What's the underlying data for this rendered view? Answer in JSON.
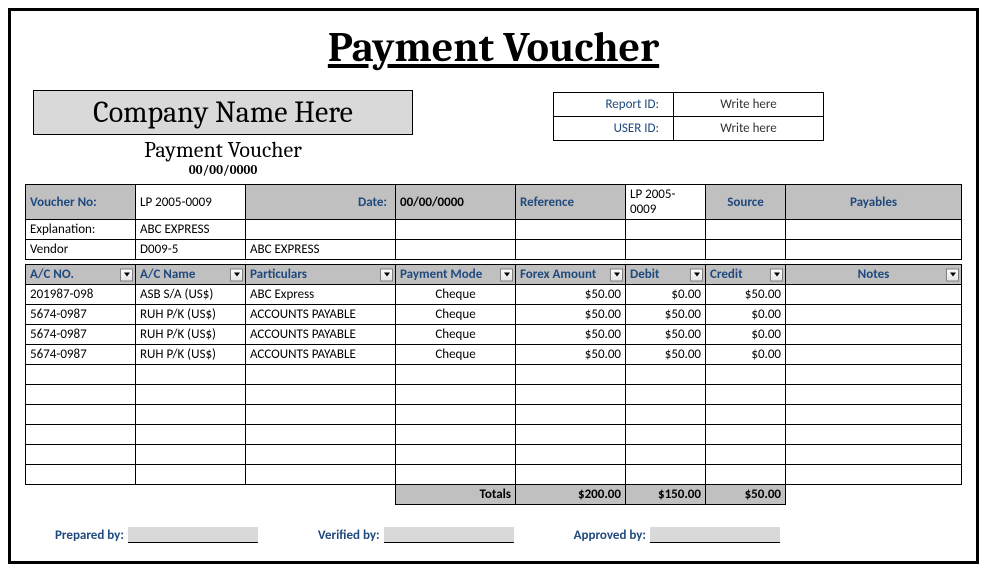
{
  "title": "Payment Voucher",
  "company": {
    "name": "Company Name Here",
    "subtitle": "Payment Voucher",
    "date": "00/00/0000"
  },
  "ids": {
    "report_label": "Report ID:",
    "report_value": "Write here",
    "user_label": "USER ID:",
    "user_value": "Write here"
  },
  "info_headers": {
    "voucher_no": "Voucher No:",
    "date": "Date:",
    "reference": "Reference",
    "source": "Source",
    "payables": "Payables"
  },
  "info": {
    "voucher_no_value": "LP 2005-0009",
    "date_value": "00/00/0000",
    "reference_value": "LP 2005-0009",
    "explanation_label": "Explanation:",
    "explanation_value": "ABC EXPRESS",
    "vendor_label": "Vendor",
    "vendor_code": "D009-5",
    "vendor_name": "ABC EXPRESS"
  },
  "columns": {
    "ac_no": "A/C NO.",
    "ac_name": "A/C Name",
    "particulars": "Particulars",
    "payment_mode": "Payment Mode",
    "forex_amount": "Forex Amount",
    "debit": "Debit",
    "credit": "Credit",
    "notes": "Notes"
  },
  "rows": [
    {
      "ac_no": "201987-098",
      "ac_name": "ASB S/A (US$)",
      "particulars": "ABC Express",
      "payment_mode": "Cheque",
      "forex": "$50.00",
      "debit": "$0.00",
      "credit": "$50.00",
      "notes": ""
    },
    {
      "ac_no": "5674-0987",
      "ac_name": "RUH P/K (US$)",
      "particulars": "ACCOUNTS PAYABLE",
      "payment_mode": "Cheque",
      "forex": "$50.00",
      "debit": "$50.00",
      "credit": "$0.00",
      "notes": ""
    },
    {
      "ac_no": "5674-0987",
      "ac_name": "RUH P/K (US$)",
      "particulars": "ACCOUNTS PAYABLE",
      "payment_mode": "Cheque",
      "forex": "$50.00",
      "debit": "$50.00",
      "credit": "$0.00",
      "notes": ""
    },
    {
      "ac_no": "5674-0987",
      "ac_name": "RUH P/K (US$)",
      "particulars": "ACCOUNTS PAYABLE",
      "payment_mode": "Cheque",
      "forex": "$50.00",
      "debit": "$50.00",
      "credit": "$0.00",
      "notes": ""
    }
  ],
  "blank_rows": 6,
  "totals": {
    "label": "Totals",
    "forex": "$200.00",
    "debit": "$150.00",
    "credit": "$50.00"
  },
  "signatures": {
    "prepared": "Prepared by:",
    "verified": "Verified by:",
    "approved": "Approved by:"
  },
  "styling": {
    "header_bg": "#c0c0c0",
    "header_text": "#1f497d",
    "company_bg": "#d9d9d9",
    "sig_box_bg": "#d9d9d9",
    "border_color": "#000000",
    "page_bg": "#ffffff",
    "title_fontsize_pt": 32,
    "company_fontsize_pt": 22,
    "body_fontsize_pt": 10,
    "font_family_title": "Cambria",
    "font_family_body": "Calibri"
  }
}
